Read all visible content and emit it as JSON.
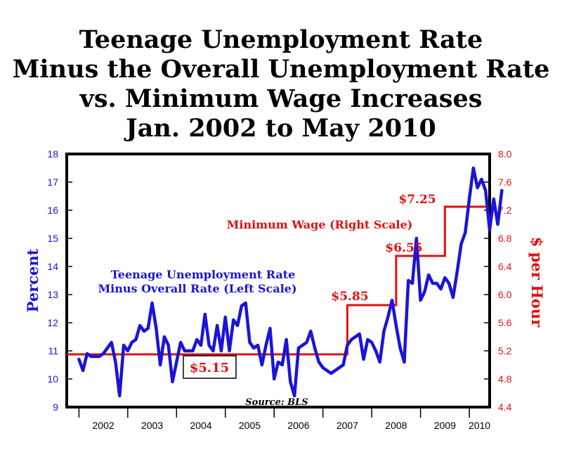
{
  "title_lines": [
    "Teenage Unemployment Rate",
    "Minus the Overall Unemployment Rate",
    "vs. Minimum Wage Increases",
    "Jan. 2002 to May 2010"
  ],
  "colors": {
    "left_series": "#1a14d8",
    "right_series": "#e01010",
    "axis": "#000000"
  },
  "chart_data": {
    "type": "line",
    "title": "Teenage Unemployment Rate Minus the Overall Unemployment Rate vs. Minimum Wage Increases Jan. 2002 to May 2010",
    "source": "Source: BLS",
    "x_ticks": [
      "2002",
      "2003",
      "2004",
      "2005",
      "2006",
      "2007",
      "2008",
      "2009",
      "2010"
    ],
    "y_left": {
      "label": "Percent",
      "range": [
        9,
        18
      ],
      "ticks": [
        "9",
        "10",
        "11",
        "12",
        "13",
        "14",
        "15",
        "16",
        "17",
        "18"
      ]
    },
    "y_right": {
      "label": "$ per Hour",
      "range": [
        4.4,
        8.0
      ],
      "ticks": [
        "4.4",
        "4.8",
        "5.2",
        "5.6",
        "6.0",
        "6.4",
        "6.8",
        "7.2",
        "7.6",
        "8.0"
      ]
    },
    "series": [
      {
        "name": "Teenage Unemployment Rate Minus Overall Rate (Left Scale)",
        "axis": "left",
        "start": "2002-01",
        "frequency": "monthly",
        "values": [
          10.7,
          10.3,
          10.9,
          10.8,
          10.8,
          10.8,
          10.9,
          11.1,
          11.3,
          10.6,
          9.4,
          11.2,
          11.0,
          11.3,
          11.4,
          11.9,
          11.7,
          11.8,
          12.7,
          11.8,
          10.5,
          11.5,
          11.2,
          9.9,
          10.6,
          11.3,
          11.0,
          11.0,
          11.0,
          11.4,
          11.2,
          12.3,
          11.2,
          11.0,
          11.9,
          11.0,
          12.2,
          11.0,
          12.1,
          11.9,
          12.6,
          12.7,
          11.3,
          11.1,
          11.2,
          10.5,
          11.2,
          11.8,
          10.0,
          10.6,
          10.5,
          11.4,
          9.9,
          9.4,
          11.1,
          11.2,
          11.3,
          11.7,
          11.1,
          10.6,
          10.4,
          10.3,
          10.2,
          10.3,
          10.4,
          10.5,
          11.2,
          11.4,
          11.5,
          11.6,
          10.7,
          11.4,
          11.3,
          11.0,
          10.6,
          11.7,
          12.2,
          12.8,
          11.9,
          11.1,
          10.6,
          13.5,
          13.4,
          15.0,
          12.8,
          13.1,
          13.7,
          13.4,
          13.4,
          13.2,
          13.6,
          13.4,
          12.9,
          13.8,
          14.8,
          15.2,
          16.4,
          17.5,
          16.8,
          17.1,
          16.7,
          15.3,
          16.4,
          15.5,
          16.7
        ]
      },
      {
        "name": "Minimum Wage (Right Scale)",
        "axis": "right",
        "type": "step",
        "steps": [
          {
            "from": "2001-10",
            "value": 5.15
          },
          {
            "from": "2007-07",
            "value": 5.85
          },
          {
            "from": "2008-07",
            "value": 6.55
          },
          {
            "from": "2009-07",
            "value": 7.25
          }
        ],
        "end": "2010-05"
      }
    ],
    "annotations": [
      {
        "text": "Teenage Unemployment Rate",
        "color": "left_series"
      },
      {
        "text": "Minus Overall Rate (Left Scale)",
        "color": "left_series"
      },
      {
        "text": "Minimum Wage (Right Scale)",
        "color": "right_series"
      },
      {
        "text": "$5.15",
        "color": "right_series",
        "boxed": true
      },
      {
        "text": "$5.85",
        "color": "right_series"
      },
      {
        "text": "$6.55",
        "color": "right_series"
      },
      {
        "text": "$7.25",
        "color": "right_series"
      }
    ],
    "grid": false,
    "legend": "none"
  }
}
